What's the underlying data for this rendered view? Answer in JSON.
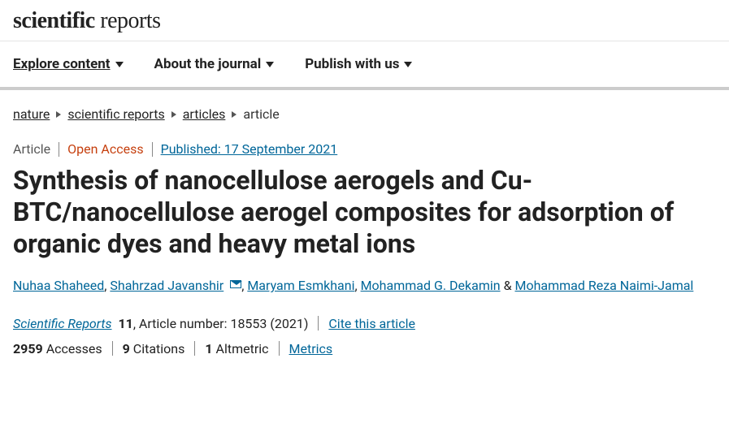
{
  "brand": {
    "first": "scientific",
    "second": "reports"
  },
  "nav": {
    "explore": "Explore content",
    "about": "About the journal",
    "publish": "Publish with us"
  },
  "crumbs": {
    "c1": "nature",
    "c2": "scientific reports",
    "c3": "articles",
    "c4": "article"
  },
  "meta": {
    "type": "Article",
    "oa": "Open Access",
    "published": "Published: 17 September 2021"
  },
  "title": "Synthesis of nanocellulose aerogels and Cu-BTC/nanocellulose aerogel composites for adsorption of organic dyes and heavy metal ions",
  "authors": {
    "a1": "Nuhaa Shaheed",
    "a2": "Shahrzad Javanshir",
    "a3": "Maryam Esmkhani",
    "a4": "Mohammad G. Dekamin",
    "a5": "Mohammad Reza Naimi-Jamal"
  },
  "citation": {
    "journal": "Scientific Reports",
    "volume": "11",
    "artnum_label": ", Article number: 18553 (2021)",
    "cite_link": "Cite this article"
  },
  "stats": {
    "accesses": "2959",
    "accesses_label": "Accesses",
    "citations": "9",
    "citations_label": "Citations",
    "altmetric": "1",
    "altmetric_label": "Altmetric",
    "metrics_link": "Metrics"
  }
}
